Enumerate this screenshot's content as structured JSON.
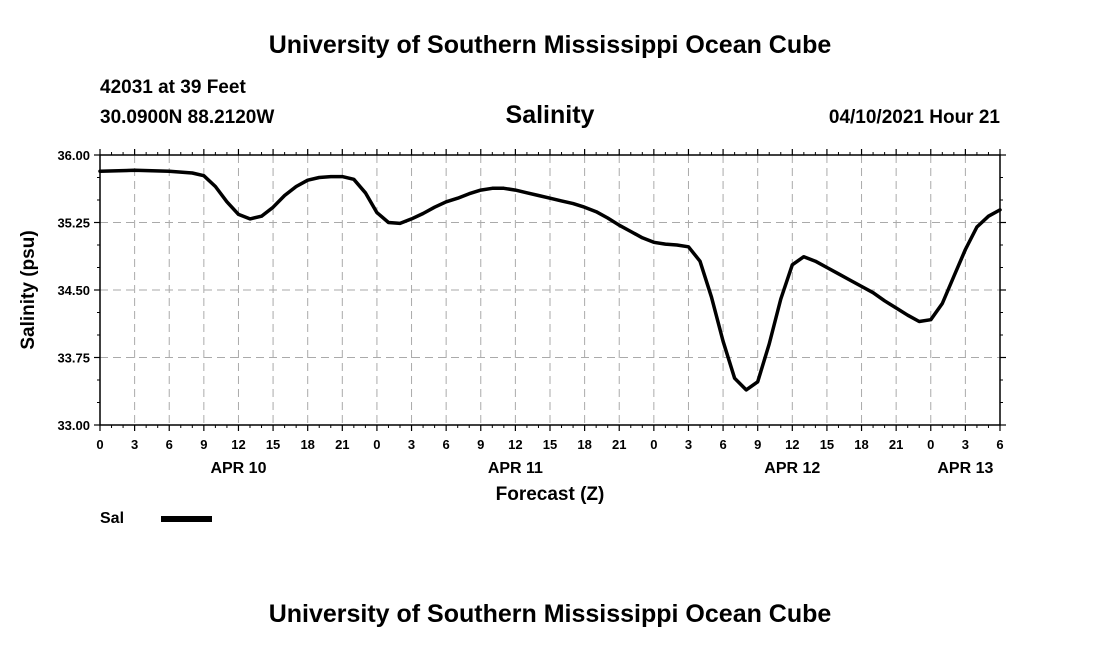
{
  "header": {
    "title": "University of Southern Mississippi Ocean Cube",
    "station": "42031 at 39 Feet",
    "coords": "30.0900N  88.2120W",
    "subtitle": "Salinity",
    "datetime": "04/10/2021 Hour 21"
  },
  "footer": {
    "title": "University of Southern Mississippi Ocean Cube"
  },
  "legend": {
    "label": "Sal"
  },
  "colors": {
    "line": "#000000",
    "grid": "#aaaaaa"
  },
  "chart_data": {
    "type": "line",
    "title": "Salinity",
    "xlabel": "Forecast (Z)",
    "ylabel": "Salinity (psu)",
    "ylim": [
      33.0,
      36.0
    ],
    "xlim": [
      0,
      78
    ],
    "grid": true,
    "y_ticks": [
      "33.00",
      "33.75",
      "34.50",
      "35.25",
      "36.00"
    ],
    "x_tick_labels": [
      "0",
      "3",
      "6",
      "9",
      "12",
      "15",
      "18",
      "21",
      "0",
      "3",
      "6",
      "9",
      "12",
      "15",
      "18",
      "21",
      "0",
      "3",
      "6",
      "9",
      "12",
      "15",
      "18",
      "21",
      "0",
      "3",
      "6"
    ],
    "date_labels": [
      {
        "label": "APR 10",
        "hour": 12
      },
      {
        "label": "APR 11",
        "hour": 36
      },
      {
        "label": "APR 12",
        "hour": 60
      },
      {
        "label": "APR 13",
        "hour": 75
      }
    ],
    "series": [
      {
        "name": "Sal",
        "x": [
          0,
          3,
          6,
          8,
          9,
          10,
          11,
          12,
          13,
          14,
          15,
          16,
          17,
          18,
          19,
          20,
          21,
          22,
          23,
          24,
          25,
          26,
          27,
          28,
          29,
          30,
          31,
          32,
          33,
          34,
          35,
          36,
          37,
          38,
          39,
          40,
          41,
          42,
          43,
          44,
          45,
          46,
          47,
          48,
          49,
          50,
          51,
          52,
          53,
          54,
          55,
          56,
          57,
          58,
          59,
          60,
          61,
          62,
          63,
          64,
          65,
          66,
          67,
          68,
          69,
          70,
          71,
          72,
          73,
          74,
          75,
          76,
          77,
          78
        ],
        "values": [
          35.82,
          35.83,
          35.82,
          35.8,
          35.77,
          35.65,
          35.48,
          35.34,
          35.29,
          35.32,
          35.42,
          35.55,
          35.65,
          35.72,
          35.75,
          35.76,
          35.76,
          35.73,
          35.58,
          35.36,
          35.25,
          35.24,
          35.29,
          35.35,
          35.42,
          35.48,
          35.52,
          35.57,
          35.61,
          35.63,
          35.63,
          35.61,
          35.58,
          35.55,
          35.52,
          35.49,
          35.46,
          35.42,
          35.37,
          35.3,
          35.22,
          35.15,
          35.08,
          35.03,
          35.01,
          35.0,
          34.98,
          34.82,
          34.42,
          33.93,
          33.52,
          33.39,
          33.48,
          33.9,
          34.4,
          34.78,
          34.87,
          34.82,
          34.75,
          34.68,
          34.61,
          34.54,
          34.47,
          34.38,
          34.3,
          34.22,
          34.15,
          34.17,
          34.35,
          34.65,
          34.95,
          35.2,
          35.32,
          35.39
        ]
      }
    ]
  }
}
